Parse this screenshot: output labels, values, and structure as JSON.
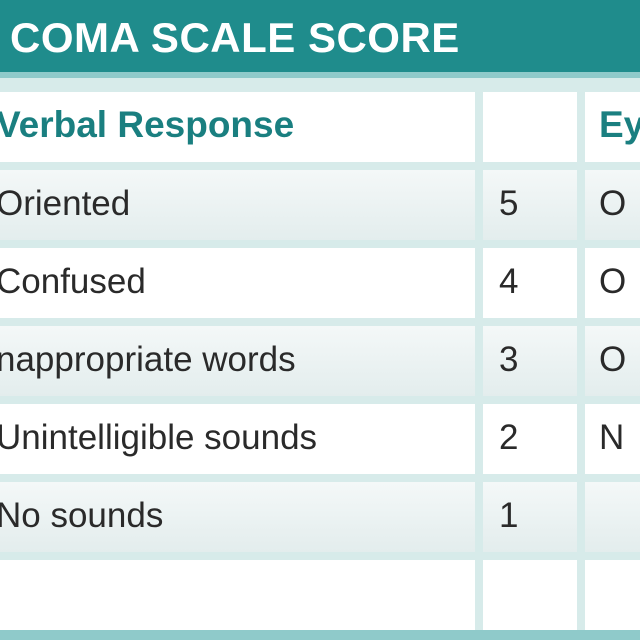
{
  "header": {
    "title": "COMA SCALE SCORE"
  },
  "table": {
    "verbal_header": "Verbal Response",
    "score_header": "",
    "right_header": "Ey",
    "rows": [
      {
        "response": "Oriented",
        "score": "5",
        "right": "O"
      },
      {
        "response": "Confused",
        "score": "4",
        "right": "O"
      },
      {
        "response": "nappropriate words",
        "score": "3",
        "right": "O"
      },
      {
        "response": "Unintelligible sounds",
        "score": "2",
        "right": "N"
      },
      {
        "response": "No sounds",
        "score": "1",
        "right": ""
      },
      {
        "response": "",
        "score": "",
        "right": ""
      }
    ]
  },
  "colors": {
    "header_bg": "#1f8c8c",
    "header_text": "#ffffff",
    "heading_text": "#1a7f80",
    "grid_line": "#d7ebea"
  }
}
